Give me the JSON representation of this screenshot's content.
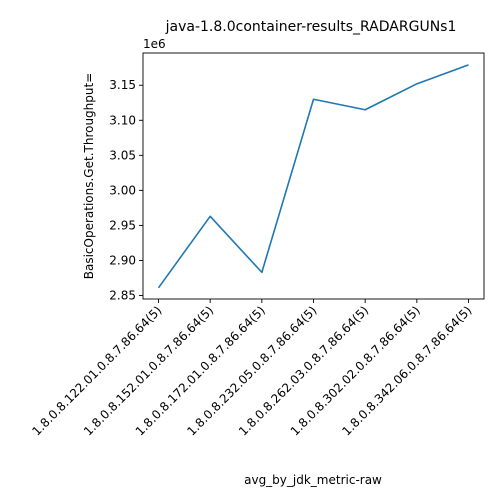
{
  "chart_data": {
    "type": "line",
    "title": "java-1.8.0container-results_RADARGUNs1",
    "xlabel": "avg_by_jdk_metric-raw",
    "ylabel": "BasicOperations.Get.Throughput=",
    "y_offset_label": "1e6",
    "categories": [
      "1.8.0.8.122.01.0.8.7.86.64(5)",
      "1.8.0.8.152.01.0.8.7.86.64(5)",
      "1.8.0.8.172.01.0.8.7.86.64(5)",
      "1.8.0.8.232.05.0.8.7.86.64(5)",
      "1.8.0.8.262.03.0.8.7.86.64(5)",
      "1.8.0.8.302.02.0.8.7.86.64(5)",
      "1.8.0.8.342.06.0.8.7.86.64(5)"
    ],
    "series": [
      {
        "name": "BasicOperations.Get.Throughput",
        "color": "#1f77b4",
        "values": [
          2861000,
          2963000,
          2883000,
          3130000,
          3115000,
          3152000,
          3179000
        ]
      }
    ],
    "ylim": [
      2845000,
      3196000
    ],
    "yticks": [
      2850000,
      2900000,
      2950000,
      3000000,
      3050000,
      3100000,
      3150000
    ],
    "ytick_labels": [
      "2.85",
      "2.90",
      "2.95",
      "3.00",
      "3.05",
      "3.10",
      "3.15"
    ],
    "grid": false,
    "legend": "none"
  }
}
